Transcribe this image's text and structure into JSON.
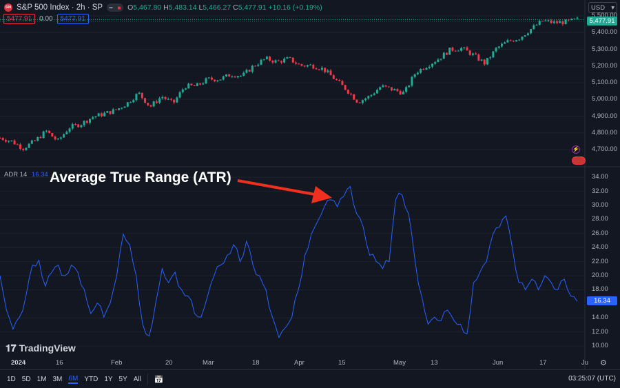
{
  "header": {
    "symbol_badge": "500",
    "title": "S&P 500 Index · 2h · SP",
    "o_label": "O",
    "o": "5,467.80",
    "h_label": "H",
    "h": "5,483.14",
    "l_label": "L",
    "l": "5,466.27",
    "c_label": "C",
    "c": "5,477.91",
    "change": "+10.16 (+0.19%)",
    "sell": "5477.91",
    "spread": "0.00",
    "buy": "5477.91"
  },
  "currency": "USD",
  "price_axis": {
    "ticks": [
      "5,500.00",
      "5,400.00",
      "5,300.00",
      "5,200.00",
      "5,100.00",
      "5,000.00",
      "4,900.00",
      "4,800.00",
      "4,700.00"
    ],
    "last": "5,477.91"
  },
  "indicator": {
    "name": "ADR",
    "length": "14",
    "value": "16.34",
    "ticks": [
      "34.00",
      "32.00",
      "30.00",
      "28.00",
      "26.00",
      "24.00",
      "22.00",
      "20.00",
      "18.00",
      "14.00",
      "12.00",
      "10.00"
    ]
  },
  "annotation": "Average True Range (ATR)",
  "brand": "TradingView",
  "time_axis": [
    "2024",
    "16",
    "Feb",
    "20",
    "Mar",
    "18",
    "Apr",
    "15",
    "May",
    "13",
    "Jun",
    "17",
    "Ju"
  ],
  "ranges": [
    "1D",
    "5D",
    "1M",
    "3M",
    "6M",
    "YTD",
    "1Y",
    "5Y",
    "All"
  ],
  "active_range": "6M",
  "clock": "03:25:07 (UTC)",
  "colors": {
    "up": "#22ab94",
    "down": "#f23645",
    "atr": "#2962ff",
    "arrow": "#f0301e"
  },
  "chart_data": [
    {
      "type": "candlestick",
      "ylim": [
        4650,
        5520
      ],
      "close_path": [
        4770,
        4750,
        4708,
        4750,
        4811,
        4750,
        4832,
        4853,
        4894,
        4914,
        4935,
        4976,
        5038,
        4956,
        5018,
        4976,
        5079,
        5079,
        5121,
        5121,
        5149,
        5141,
        5203,
        5244,
        5224,
        5244,
        5203,
        5203,
        5182,
        5121,
        5059,
        4985,
        5018,
        5079,
        5059,
        5038,
        5162,
        5203,
        5244,
        5298,
        5306,
        5265,
        5215,
        5306,
        5347,
        5368,
        5422,
        5471,
        5459,
        5463,
        5478
      ]
    },
    {
      "type": "line",
      "name": "ADR 14",
      "ylim": [
        9,
        35
      ],
      "values": [
        20.0,
        15.1,
        12.4,
        14.1,
        17.1,
        21.5,
        22.2,
        18.5,
        20.5,
        21.5,
        20.0,
        21.5,
        20.5,
        18.0,
        14.6,
        16.1,
        14.1,
        16.1,
        20.0,
        25.9,
        24.4,
        20.0,
        13.1,
        11.4,
        16.1,
        21.0,
        19.0,
        20.5,
        18.0,
        17.1,
        14.6,
        14.1,
        17.1,
        20.0,
        21.5,
        22.9,
        24.4,
        22.0,
        24.9,
        21.5,
        20.0,
        18.0,
        14.1,
        11.2,
        12.6,
        14.1,
        18.0,
        22.9,
        25.9,
        27.8,
        29.8,
        30.8,
        29.8,
        31.3,
        32.7,
        28.8,
        26.9,
        22.9,
        22.0,
        21.0,
        22.0,
        30.8,
        31.5,
        28.8,
        22.0,
        17.1,
        13.1,
        14.1,
        13.6,
        15.1,
        13.6,
        13.1,
        11.7,
        19.0,
        20.5,
        22.0,
        25.9,
        26.9,
        28.5,
        23.9,
        19.0,
        18.0,
        19.5,
        18.0,
        20.0,
        19.0,
        18.0,
        19.5,
        17.1,
        16.34
      ]
    }
  ]
}
